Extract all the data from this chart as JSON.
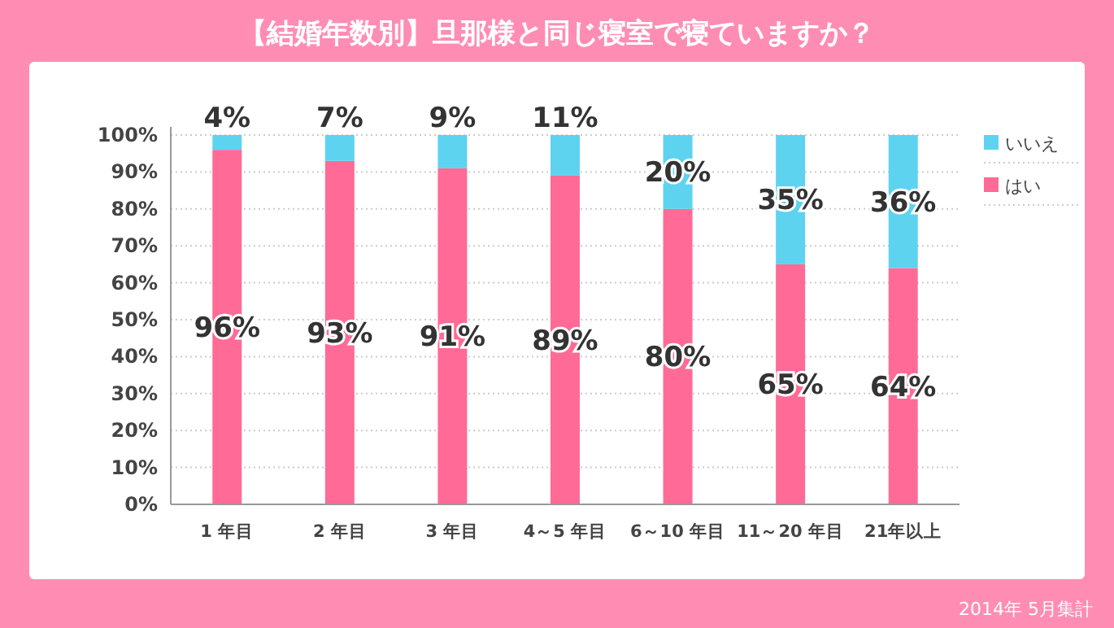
{
  "chart_data": {
    "type": "bar",
    "stacked": true,
    "title": "【結婚年数別】旦那様と同じ寝室で寝ていますか？",
    "categories": [
      "1 年目",
      "2 年目",
      "3 年目",
      "4～5 年目",
      "6～10 年目",
      "11～20 年目",
      "21年以上"
    ],
    "series": [
      {
        "name": "はい",
        "color": "#ff6b96",
        "values": [
          96,
          93,
          91,
          89,
          80,
          65,
          64
        ],
        "value_labels": [
          "96%",
          "93%",
          "91%",
          "89%",
          "80%",
          "65%",
          "64%"
        ]
      },
      {
        "name": "いいえ",
        "color": "#5dd3ef",
        "values": [
          4,
          7,
          9,
          11,
          20,
          35,
          36
        ],
        "value_labels": [
          "4%",
          "7%",
          "9%",
          "11%",
          "20%",
          "35%",
          "36%"
        ]
      }
    ],
    "ylim": [
      0,
      100
    ],
    "yticks": [
      {
        "value": 0,
        "label": "0%"
      },
      {
        "value": 10,
        "label": "10%"
      },
      {
        "value": 20,
        "label": "20%"
      },
      {
        "value": 30,
        "label": "30%"
      },
      {
        "value": 40,
        "label": "40%"
      },
      {
        "value": 50,
        "label": "50%"
      },
      {
        "value": 60,
        "label": "60%"
      },
      {
        "value": 70,
        "label": "70%"
      },
      {
        "value": 80,
        "label": "80%"
      },
      {
        "value": 90,
        "label": "90%"
      },
      {
        "value": 100,
        "label": "100%"
      }
    ],
    "grid": "y",
    "legend": "right",
    "annotations": [
      "2014年 5月集計"
    ]
  }
}
